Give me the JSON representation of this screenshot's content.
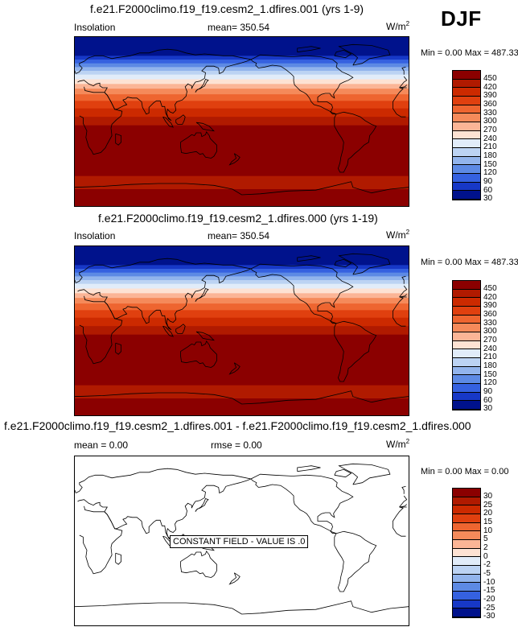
{
  "season": "DJF",
  "panels": [
    {
      "title": "f.e21.F2000climo.f19_f19.cesm2_1.dfires.001 (yrs 1-9)",
      "left_label": "Insolation",
      "center_label": "mean= 350.54",
      "units": "W/m",
      "units_sup": "2",
      "minmax": "Min =  0.00 Max = 487.33",
      "field": "insolation",
      "levels": [
        "450",
        "420",
        "390",
        "360",
        "330",
        "300",
        "270",
        "240",
        "210",
        "180",
        "150",
        "120",
        "90",
        "60",
        "30"
      ]
    },
    {
      "title": "f.e21.F2000climo.f19_f19.cesm2_1.dfires.000 (yrs 1-19)",
      "left_label": "Insolation",
      "center_label": "mean= 350.54",
      "units": "W/m",
      "units_sup": "2",
      "minmax": "Min =  0.00 Max = 487.33",
      "field": "insolation",
      "levels": [
        "450",
        "420",
        "390",
        "360",
        "330",
        "300",
        "270",
        "240",
        "210",
        "180",
        "150",
        "120",
        "90",
        "60",
        "30"
      ]
    },
    {
      "title": "f.e21.F2000climo.f19_f19.cesm2_1.dfires.001 - f.e21.F2000climo.f19_f19.cesm2_1.dfires.000",
      "left_label": "mean =   0.00",
      "center_label": "rmse =   0.00",
      "units": "W/m",
      "units_sup": "2",
      "minmax": "Min =  0.00 Max =   0.00",
      "field": "difference",
      "notice": "CONSTANT FIELD - VALUE IS .0",
      "levels": [
        "30",
        "25",
        "20",
        "15",
        "10",
        "5",
        "2",
        "0",
        "-2",
        "-5",
        "-10",
        "-15",
        "-20",
        "-25",
        "-30"
      ]
    }
  ],
  "colors": {
    "palette": [
      "#8b0000",
      "#b01a00",
      "#cc2a00",
      "#e0400f",
      "#ee6530",
      "#f58a5a",
      "#fbb596",
      "#fde2d3",
      "#e1ecf9",
      "#bcd3f3",
      "#92b4ec",
      "#5d8ae4",
      "#3561e0",
      "#1738c7",
      "#00128c"
    ]
  }
}
